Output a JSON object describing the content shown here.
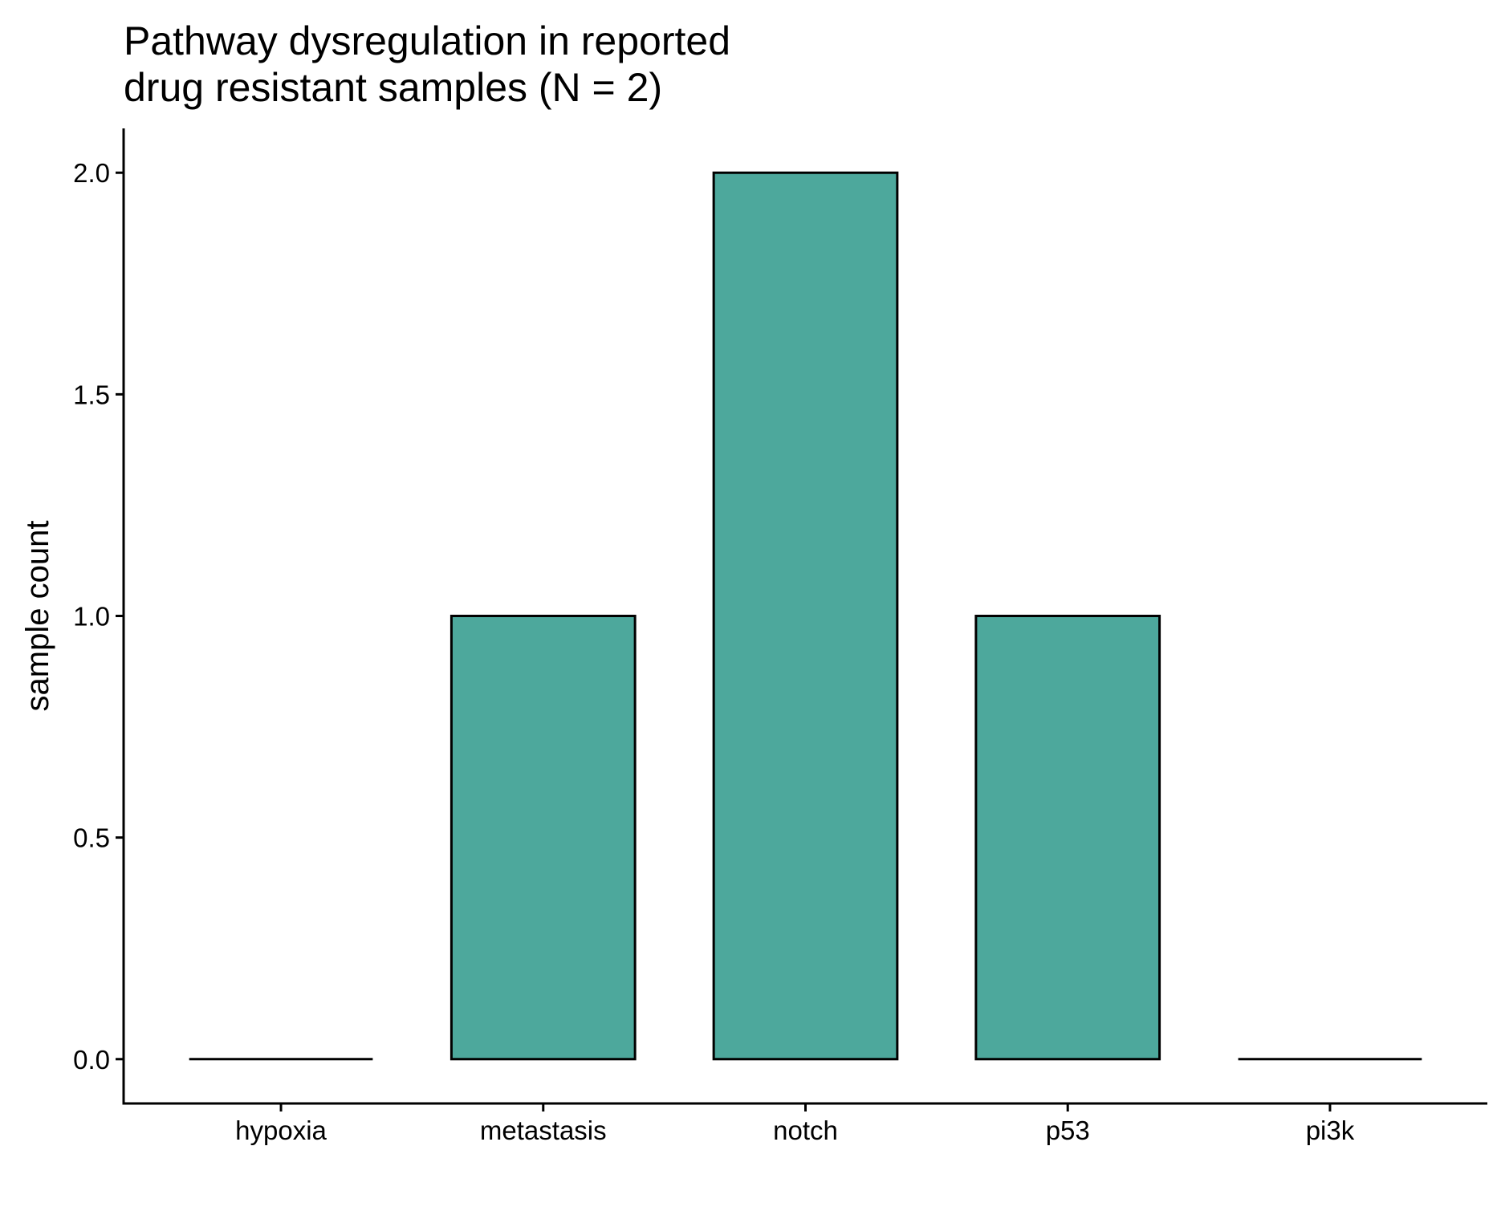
{
  "chart_data": {
    "type": "bar",
    "title_lines": [
      "Pathway dysregulation in reported",
      "drug resistant samples (N = 2)"
    ],
    "xlabel": "",
    "ylabel": "sample count",
    "categories": [
      "hypoxia",
      "metastasis",
      "notch",
      "p53",
      "pi3k"
    ],
    "values": [
      0,
      1,
      2,
      1,
      0
    ],
    "ylim": [
      -0.1,
      2.1
    ],
    "yticks": [
      0.0,
      0.5,
      1.0,
      1.5,
      2.0
    ],
    "ytick_labels": [
      "0.0",
      "0.5",
      "1.0",
      "1.5",
      "2.0"
    ],
    "grid": false,
    "legend": "none",
    "colors": {
      "bar_fill": "#4da89c",
      "bar_stroke": "#000000",
      "axis": "#000000"
    }
  }
}
